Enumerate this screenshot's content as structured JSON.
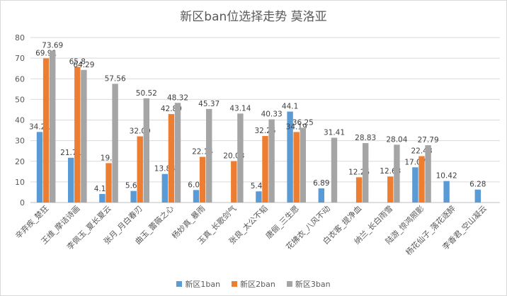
{
  "chart_data": {
    "type": "bar",
    "title": "新区ban位选择走势 莫洛亚",
    "categories": [
      "辛弃疾_楚狂",
      "王维_摩诘诗画",
      "李佩玉_夏长夏云",
      "张月_月白春刃",
      "曲玉_蕾薇之心",
      "杨妙真_暴雨",
      "玉真_长歌剑气",
      "张良_太公不韬",
      "唐俪_三生愿",
      "花拂衣_八风不动",
      "白衣客_提净血",
      "纳兰_长白雨雪",
      "陆游_惊鸿照影",
      "杨花仙子_落花逐醉",
      "李香君_空山凝云"
    ],
    "series": [
      {
        "name": "新区1ban",
        "color": "#5b9bd5",
        "values": [
          34.21,
          21.71,
          4.16,
          5.62,
          13.84,
          6.06,
          null,
          5.41,
          44.1,
          6.89,
          null,
          null,
          17.07,
          10.42,
          6.28
        ]
      },
      {
        "name": "新区2ban",
        "color": "#ed7d31",
        "values": [
          69.91,
          65.8,
          19.1,
          32.09,
          42.89,
          22.14,
          20.08,
          32.25,
          34.19,
          null,
          12.25,
          12.63,
          22.48,
          null,
          null
        ]
      },
      {
        "name": "新区3ban",
        "color": "#a5a5a5",
        "values": [
          73.69,
          64.29,
          57.56,
          50.52,
          48.32,
          45.37,
          43.14,
          40.33,
          36.25,
          31.41,
          28.83,
          28.04,
          27.79,
          null,
          null
        ]
      }
    ],
    "ylim": [
      0,
      80
    ],
    "yticks": [
      0,
      10,
      20,
      30,
      40,
      50,
      60,
      70,
      80
    ],
    "grid": true,
    "legend_position": "bottom"
  }
}
